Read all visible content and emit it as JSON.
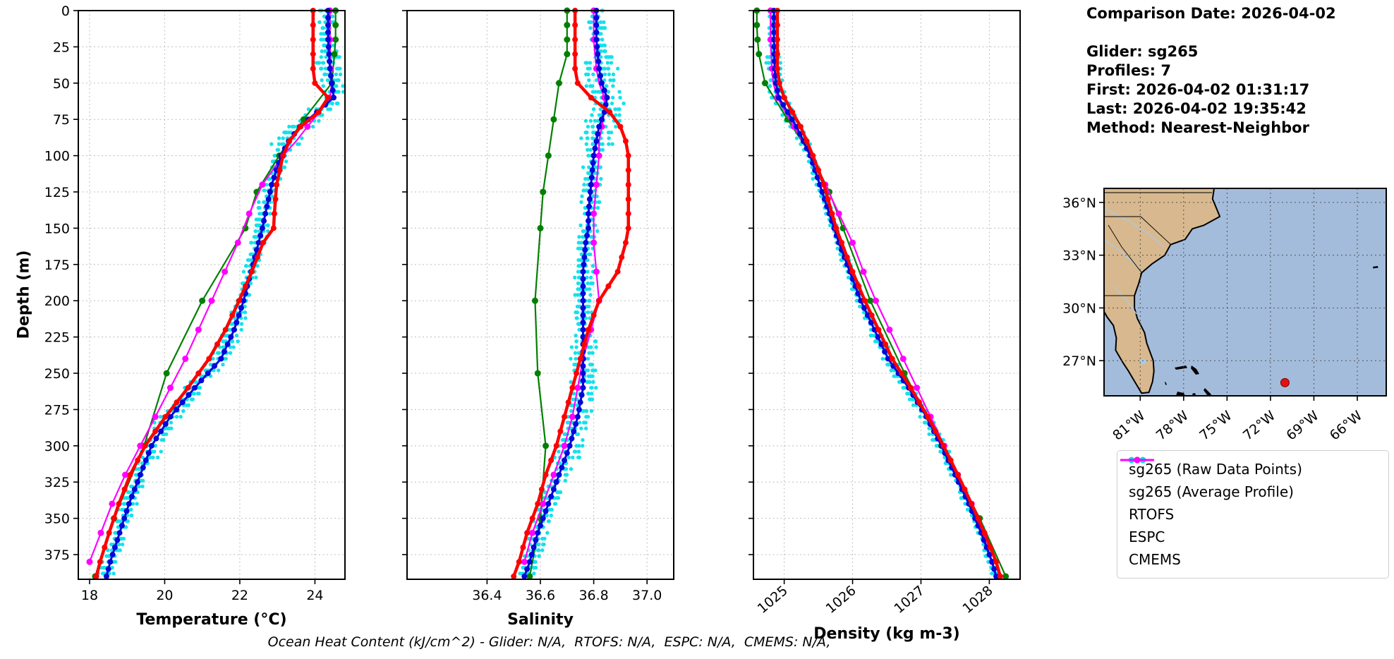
{
  "info_panel": {
    "lines": [
      "Comparison Date: 2026-04-02",
      "",
      "Glider: sg265",
      "Profiles: 7",
      "First: 2026-04-02 01:31:17",
      "Last: 2026-04-02 19:35:42",
      "Method: Nearest-Neighbor"
    ]
  },
  "footer": {
    "text": "Ocean Heat Content (kJ/cm^2) - Glider: N/A,  RTOFS: N/A,  ESPC: N/A,  CMEMS: N/A,"
  },
  "legend": {
    "items": [
      {
        "label": "sg265 (Raw Data Points)",
        "color": "#00e0ea",
        "style": "scatter"
      },
      {
        "label": "sg265 (Average Profile)",
        "color": "#0707d9",
        "style": "line"
      },
      {
        "label": "RTOFS",
        "color": "#ff0000",
        "style": "line"
      },
      {
        "label": "ESPC",
        "color": "#008000",
        "style": "line"
      },
      {
        "label": "CMEMS",
        "color": "#ff00ff",
        "style": "line"
      }
    ]
  },
  "map": {
    "lon_range": [
      -83.5,
      -64
    ],
    "lat_range": [
      25,
      36.8
    ],
    "lat_ticks": [
      {
        "value": 36,
        "label": "36°N"
      },
      {
        "value": 33,
        "label": "33°N"
      },
      {
        "value": 30,
        "label": "30°N"
      },
      {
        "value": 27,
        "label": "27°N"
      }
    ],
    "lon_ticks": [
      {
        "value": -81,
        "label": "81°W"
      },
      {
        "value": -78,
        "label": "78°W"
      },
      {
        "value": -75,
        "label": "75°W"
      },
      {
        "value": -72,
        "label": "72°W"
      },
      {
        "value": -69,
        "label": "69°W"
      },
      {
        "value": -66,
        "label": "66°W"
      }
    ],
    "marker": {
      "lon": -71.0,
      "lat": 25.75
    },
    "colors": {
      "ocean": "#a4bcdb",
      "land": "#d8b88e",
      "river": "#a8cbe8",
      "lake": "#a8cbe8",
      "marker": "#e31010"
    }
  },
  "chart_data": {
    "type": "line",
    "subtype": "vertical-ocean-profiles",
    "grid": true,
    "depth_axis": {
      "label": "Depth (m)",
      "ticks": [
        0,
        25,
        50,
        75,
        100,
        125,
        150,
        175,
        200,
        225,
        250,
        275,
        300,
        325,
        350,
        375
      ],
      "range": [
        0,
        392
      ]
    },
    "panels": [
      {
        "id": "temperature",
        "xlabel": "Temperature (°C)",
        "xticks": [
          18,
          20,
          22,
          24
        ],
        "xtick_labels": [
          "18",
          "20",
          "22",
          "24"
        ],
        "xrange": [
          17.7,
          24.8
        ],
        "rotate_xticks": false,
        "show_depth_labels": true
      },
      {
        "id": "salinity",
        "xlabel": "Salinity",
        "xticks": [
          36.4,
          36.6,
          36.8,
          37.0
        ],
        "xtick_labels": [
          "36.4",
          "36.6",
          "36.8",
          "37.0"
        ],
        "xrange": [
          36.1,
          37.1
        ],
        "rotate_xticks": false,
        "show_depth_labels": false
      },
      {
        "id": "density",
        "xlabel": "Density (kg m-3)",
        "xticks": [
          1025,
          1026,
          1027,
          1028
        ],
        "xtick_labels": [
          "1025",
          "1026",
          "1027",
          "1028"
        ],
        "xrange": [
          1024.55,
          1028.45
        ],
        "rotate_xticks": true,
        "show_depth_labels": false
      }
    ],
    "draw_order": [
      "ESPC",
      "CMEMS",
      "sg265 (Average Profile)",
      "RTOFS"
    ],
    "series": [
      {
        "name": "sg265 (Raw Data Points)",
        "role": "raw",
        "color": "#00e0ea",
        "profiles": 7,
        "depth_step": 4,
        "seed": 12,
        "jitter": {
          "temperature": 0.16,
          "salinity": 0.03,
          "density": 0.05
        }
      },
      {
        "name": "sg265 (Average Profile)",
        "role": "average",
        "color": "#0707d9",
        "lw": 3,
        "marker_r": 4,
        "marker_step": 5,
        "depths": [
          0,
          20,
          40,
          50,
          60,
          70,
          80,
          90,
          100,
          120,
          140,
          150,
          160,
          180,
          200,
          220,
          240,
          260,
          280,
          300,
          320,
          340,
          360,
          380,
          390
        ],
        "temperature": [
          24.35,
          24.35,
          24.4,
          24.45,
          24.5,
          24.05,
          23.6,
          23.3,
          23.1,
          22.85,
          22.68,
          22.6,
          22.5,
          22.3,
          22.1,
          21.85,
          21.5,
          20.8,
          20.15,
          19.65,
          19.35,
          19.05,
          18.8,
          18.55,
          18.45
        ],
        "salinity": [
          36.81,
          36.81,
          36.82,
          36.83,
          36.85,
          36.84,
          36.82,
          36.81,
          36.8,
          36.79,
          36.78,
          36.78,
          36.77,
          36.76,
          36.76,
          36.76,
          36.76,
          36.76,
          36.74,
          36.71,
          36.67,
          36.63,
          36.59,
          36.56,
          36.54
        ],
        "density": [
          1024.85,
          1024.85,
          1024.86,
          1024.88,
          1024.92,
          1025.05,
          1025.18,
          1025.28,
          1025.38,
          1025.52,
          1025.66,
          1025.73,
          1025.8,
          1025.96,
          1026.12,
          1026.32,
          1026.52,
          1026.82,
          1027.08,
          1027.3,
          1027.5,
          1027.7,
          1027.88,
          1028.04,
          1028.1
        ]
      },
      {
        "name": "RTOFS",
        "role": "model",
        "color": "#ff0000",
        "lw": 4.5,
        "marker_r": 4,
        "marker_step": 10,
        "depths": [
          0,
          20,
          40,
          50,
          60,
          70,
          80,
          90,
          100,
          120,
          140,
          150,
          160,
          180,
          200,
          220,
          240,
          260,
          280,
          300,
          320,
          340,
          360,
          380,
          390
        ],
        "temperature": [
          23.95,
          23.95,
          23.95,
          24.0,
          24.35,
          24.1,
          23.62,
          23.32,
          23.15,
          22.98,
          22.92,
          22.9,
          22.62,
          22.32,
          21.98,
          21.62,
          21.18,
          20.62,
          20.02,
          19.48,
          19.08,
          18.78,
          18.52,
          18.28,
          18.18
        ],
        "salinity": [
          36.73,
          36.73,
          36.73,
          36.74,
          36.79,
          36.86,
          36.9,
          36.92,
          36.93,
          36.93,
          36.93,
          36.93,
          36.92,
          36.89,
          36.82,
          36.78,
          36.75,
          36.72,
          36.69,
          36.66,
          36.62,
          36.59,
          36.55,
          36.52,
          36.5
        ],
        "density": [
          1024.9,
          1024.9,
          1024.9,
          1024.93,
          1025.0,
          1025.12,
          1025.24,
          1025.33,
          1025.42,
          1025.58,
          1025.7,
          1025.76,
          1025.84,
          1026.0,
          1026.18,
          1026.38,
          1026.58,
          1026.85,
          1027.1,
          1027.33,
          1027.54,
          1027.74,
          1027.93,
          1028.1,
          1028.16
        ]
      },
      {
        "name": "ESPC",
        "role": "model",
        "color": "#008000",
        "lw": 2.2,
        "marker_r": 4.5,
        "marker_step": null,
        "depths": [
          0,
          10,
          20,
          30,
          50,
          75,
          100,
          125,
          150,
          200,
          250,
          300,
          350,
          390
        ],
        "temperature": [
          24.55,
          24.55,
          24.55,
          24.52,
          24.45,
          23.7,
          23.05,
          22.45,
          22.15,
          21.0,
          20.05,
          19.45,
          18.65,
          18.15
        ],
        "salinity": [
          36.7,
          36.7,
          36.7,
          36.7,
          36.67,
          36.65,
          36.63,
          36.61,
          36.6,
          36.58,
          36.59,
          36.62,
          36.6,
          36.56
        ],
        "density": [
          1024.6,
          1024.6,
          1024.61,
          1024.63,
          1024.72,
          1025.05,
          1025.4,
          1025.66,
          1025.86,
          1026.26,
          1026.76,
          1027.3,
          1027.86,
          1028.24
        ]
      },
      {
        "name": "CMEMS",
        "role": "model",
        "color": "#ff00ff",
        "lw": 2.2,
        "marker_r": 4.5,
        "marker_step": 20,
        "depths": [
          0,
          20,
          40,
          50,
          60,
          70,
          80,
          90,
          100,
          120,
          140,
          150,
          160,
          180,
          200,
          220,
          240,
          260,
          280,
          300,
          320,
          340,
          360,
          380
        ],
        "temperature": [
          24.4,
          24.4,
          24.42,
          24.45,
          24.4,
          24.12,
          23.8,
          23.5,
          23.15,
          22.6,
          22.25,
          22.1,
          21.95,
          21.6,
          21.25,
          20.9,
          20.55,
          20.15,
          19.75,
          19.35,
          18.95,
          18.6,
          18.3,
          18.0
        ],
        "salinity": [
          36.8,
          36.8,
          36.81,
          36.82,
          36.84,
          36.84,
          36.83,
          36.82,
          36.82,
          36.81,
          36.8,
          36.8,
          36.8,
          36.81,
          36.82,
          36.79,
          36.76,
          36.74,
          36.72,
          36.69,
          36.65,
          36.61,
          36.57,
          36.54
        ],
        "density": [
          1024.8,
          1024.8,
          1024.82,
          1024.84,
          1024.9,
          1025.02,
          1025.14,
          1025.27,
          1025.4,
          1025.6,
          1025.8,
          1025.9,
          1026.0,
          1026.16,
          1026.34,
          1026.54,
          1026.74,
          1026.94,
          1027.14,
          1027.34,
          1027.54,
          1027.74,
          1027.9,
          1028.04
        ]
      }
    ]
  }
}
